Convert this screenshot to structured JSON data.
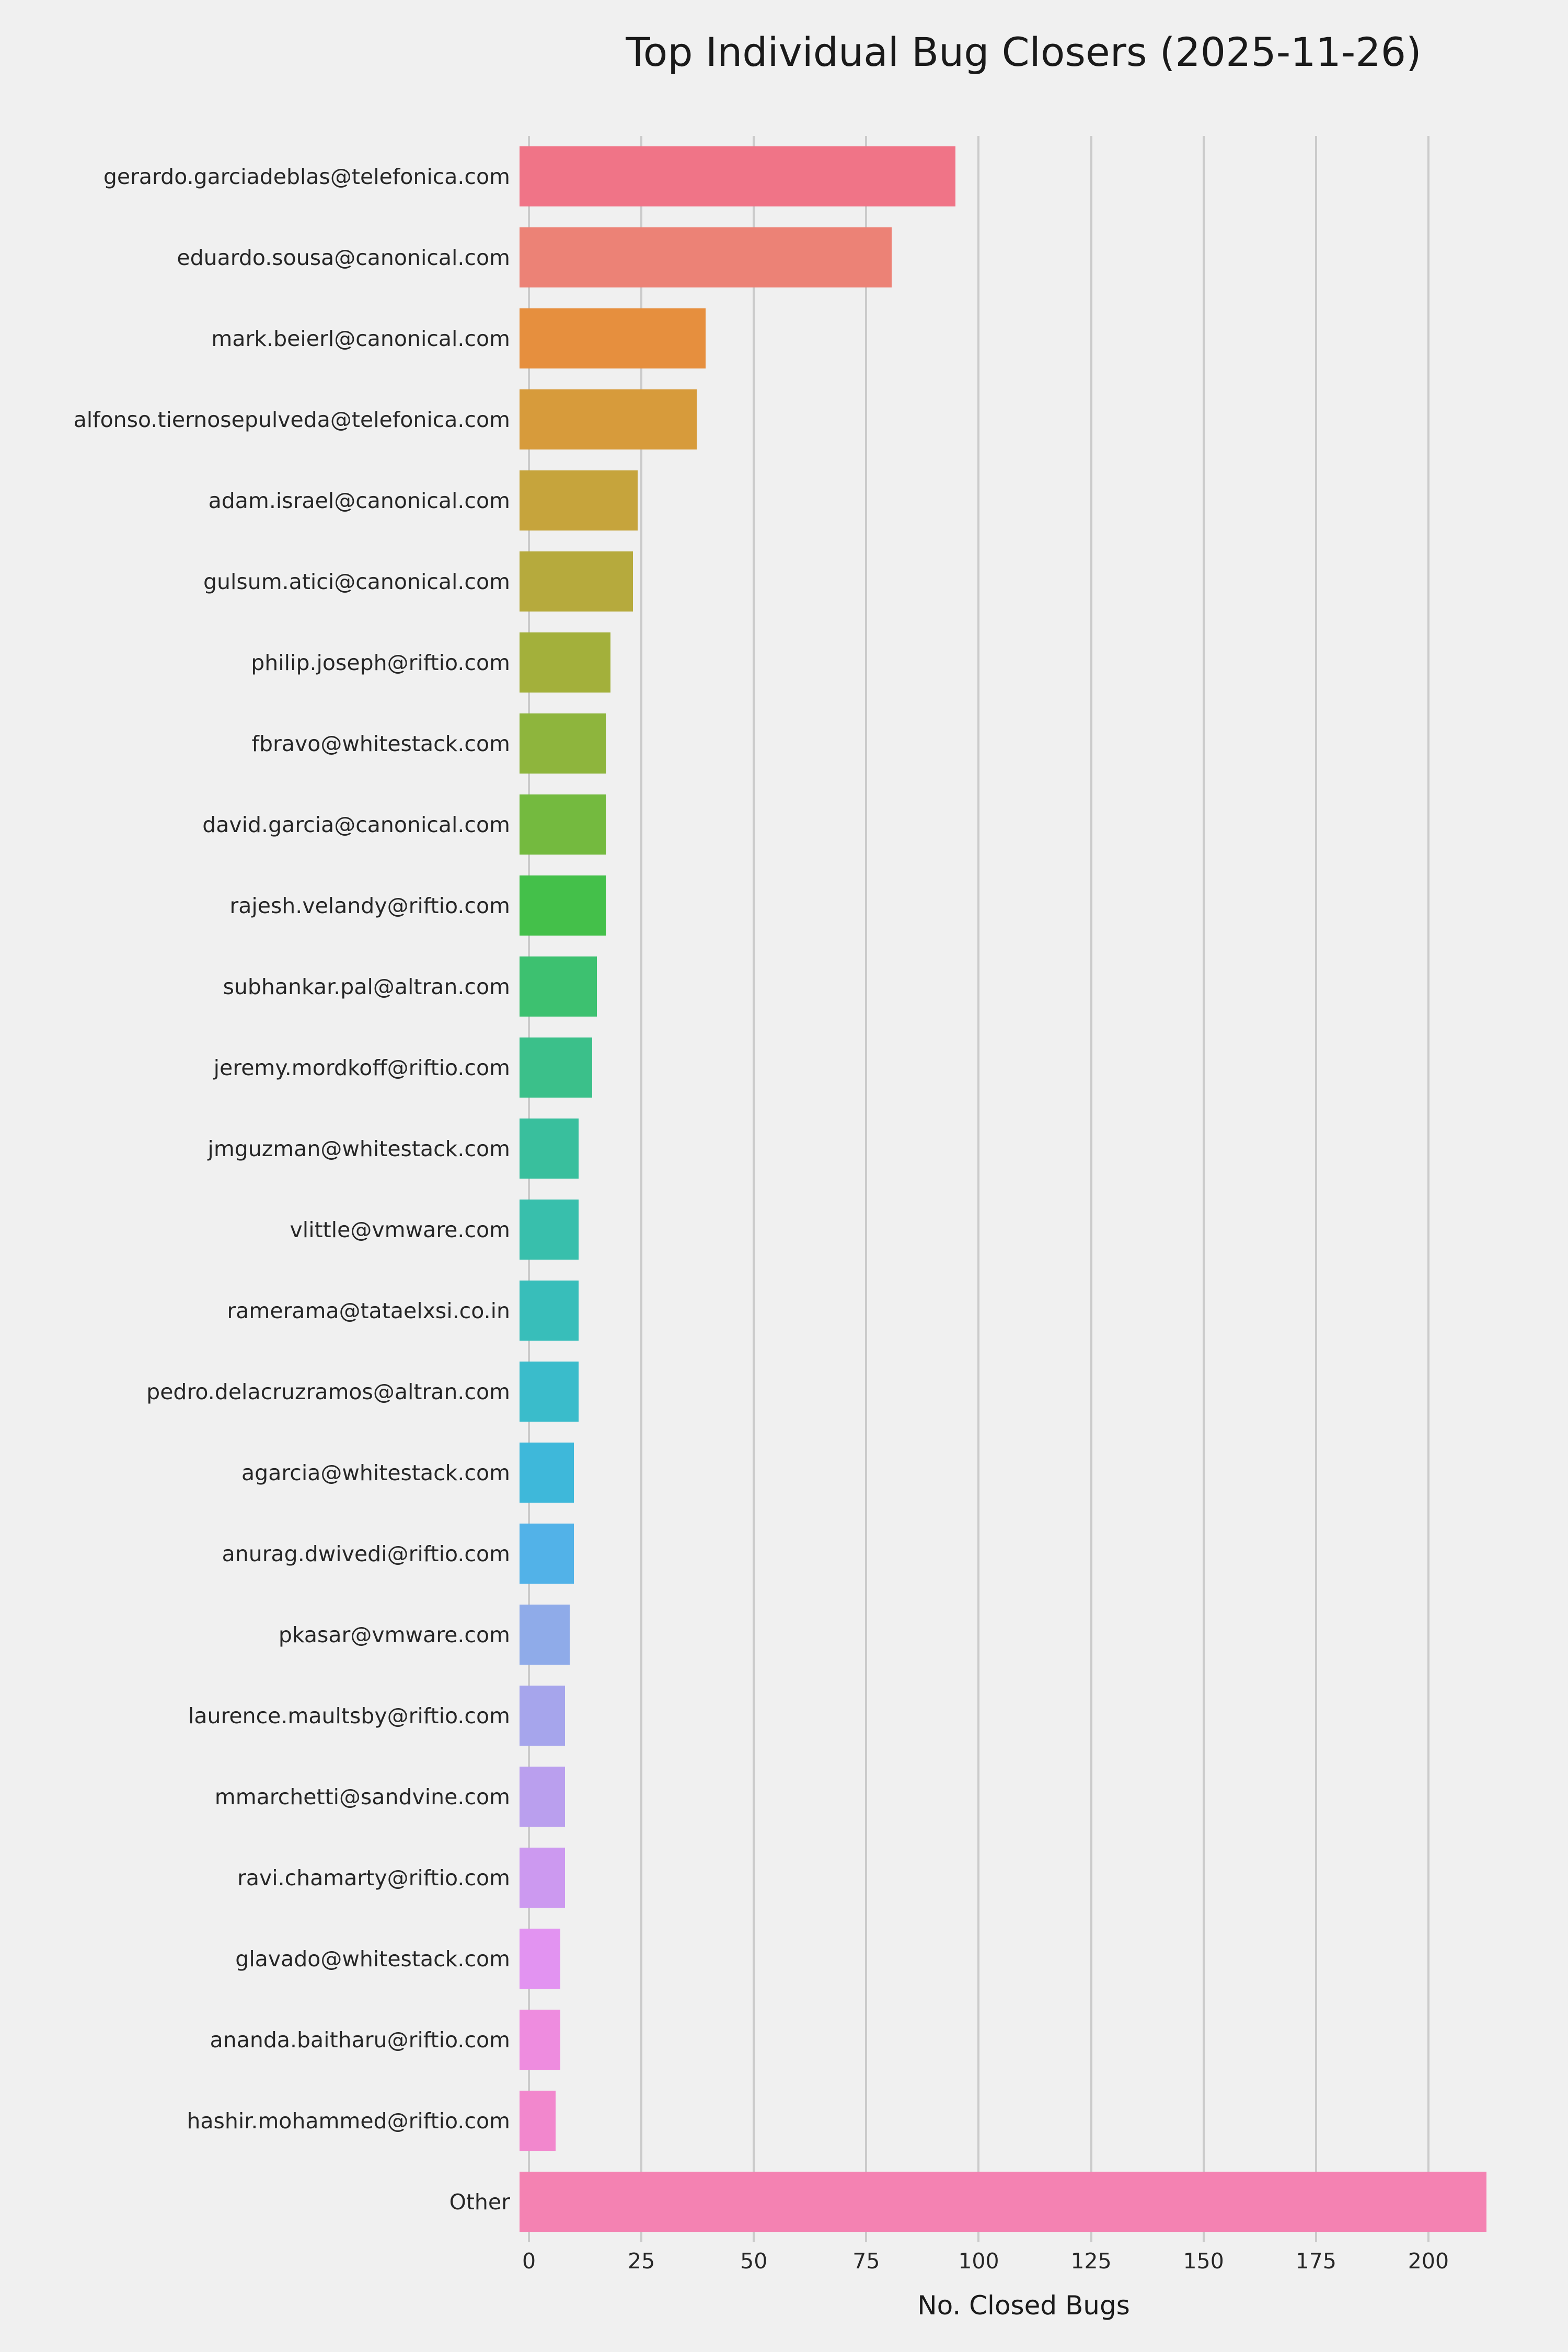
{
  "chart_data": {
    "type": "bar",
    "orientation": "horizontal",
    "title": "Top Individual Bug Closers (2025-11-26)",
    "xlabel": "No. Closed Bugs",
    "ylabel": "",
    "xlim": [
      0,
      220
    ],
    "xticks": [
      0,
      25,
      50,
      75,
      100,
      125,
      150,
      175,
      200
    ],
    "grid": "vertical",
    "legend": "none",
    "background_color": "#f0f0f0",
    "grid_color": "#cbcbcb",
    "text_color": "#262626",
    "categories": [
      "gerardo.garciadeblas@telefonica.com",
      "eduardo.sousa@canonical.com",
      "mark.beierl@canonical.com",
      "alfonso.tiernosepulveda@telefonica.com",
      "adam.israel@canonical.com",
      "gulsum.atici@canonical.com",
      "philip.joseph@riftio.com",
      "fbravo@whitestack.com",
      "david.garcia@canonical.com",
      "rajesh.velandy@riftio.com",
      "subhankar.pal@altran.com",
      "jeremy.mordkoff@riftio.com",
      "jmguzman@whitestack.com",
      "vlittle@vmware.com",
      "ramerama@tataelxsi.co.in",
      "pedro.delacruzramos@altran.com",
      "agarcia@whitestack.com",
      "anurag.dwivedi@riftio.com",
      "pkasar@vmware.com",
      "laurence.maultsby@riftio.com",
      "mmarchetti@sandvine.com",
      "ravi.chamarty@riftio.com",
      "glavado@whitestack.com",
      "ananda.baitharu@riftio.com",
      "hashir.mohammed@riftio.com",
      "Other"
    ],
    "values": [
      96,
      82,
      41,
      39,
      26,
      25,
      20,
      19,
      19,
      19,
      17,
      16,
      13,
      13,
      13,
      13,
      12,
      12,
      11,
      10,
      10,
      10,
      9,
      9,
      8,
      213
    ],
    "bar_colors": [
      "#f07487",
      "#ec8276",
      "#e68f3e",
      "#d79b3b",
      "#c6a43c",
      "#b6aa3d",
      "#a3b03b",
      "#8eb53d",
      "#74ba3f",
      "#44c04a",
      "#3dc170",
      "#3bc08a",
      "#39bf9d",
      "#38bfac",
      "#38beba",
      "#3abccb",
      "#3eb8da",
      "#52b2e8",
      "#8fabe9",
      "#a6a5ec",
      "#ba9fee",
      "#cc99f0",
      "#e293f1",
      "#ee8cdf",
      "#f287cd",
      "#f482b2"
    ]
  }
}
